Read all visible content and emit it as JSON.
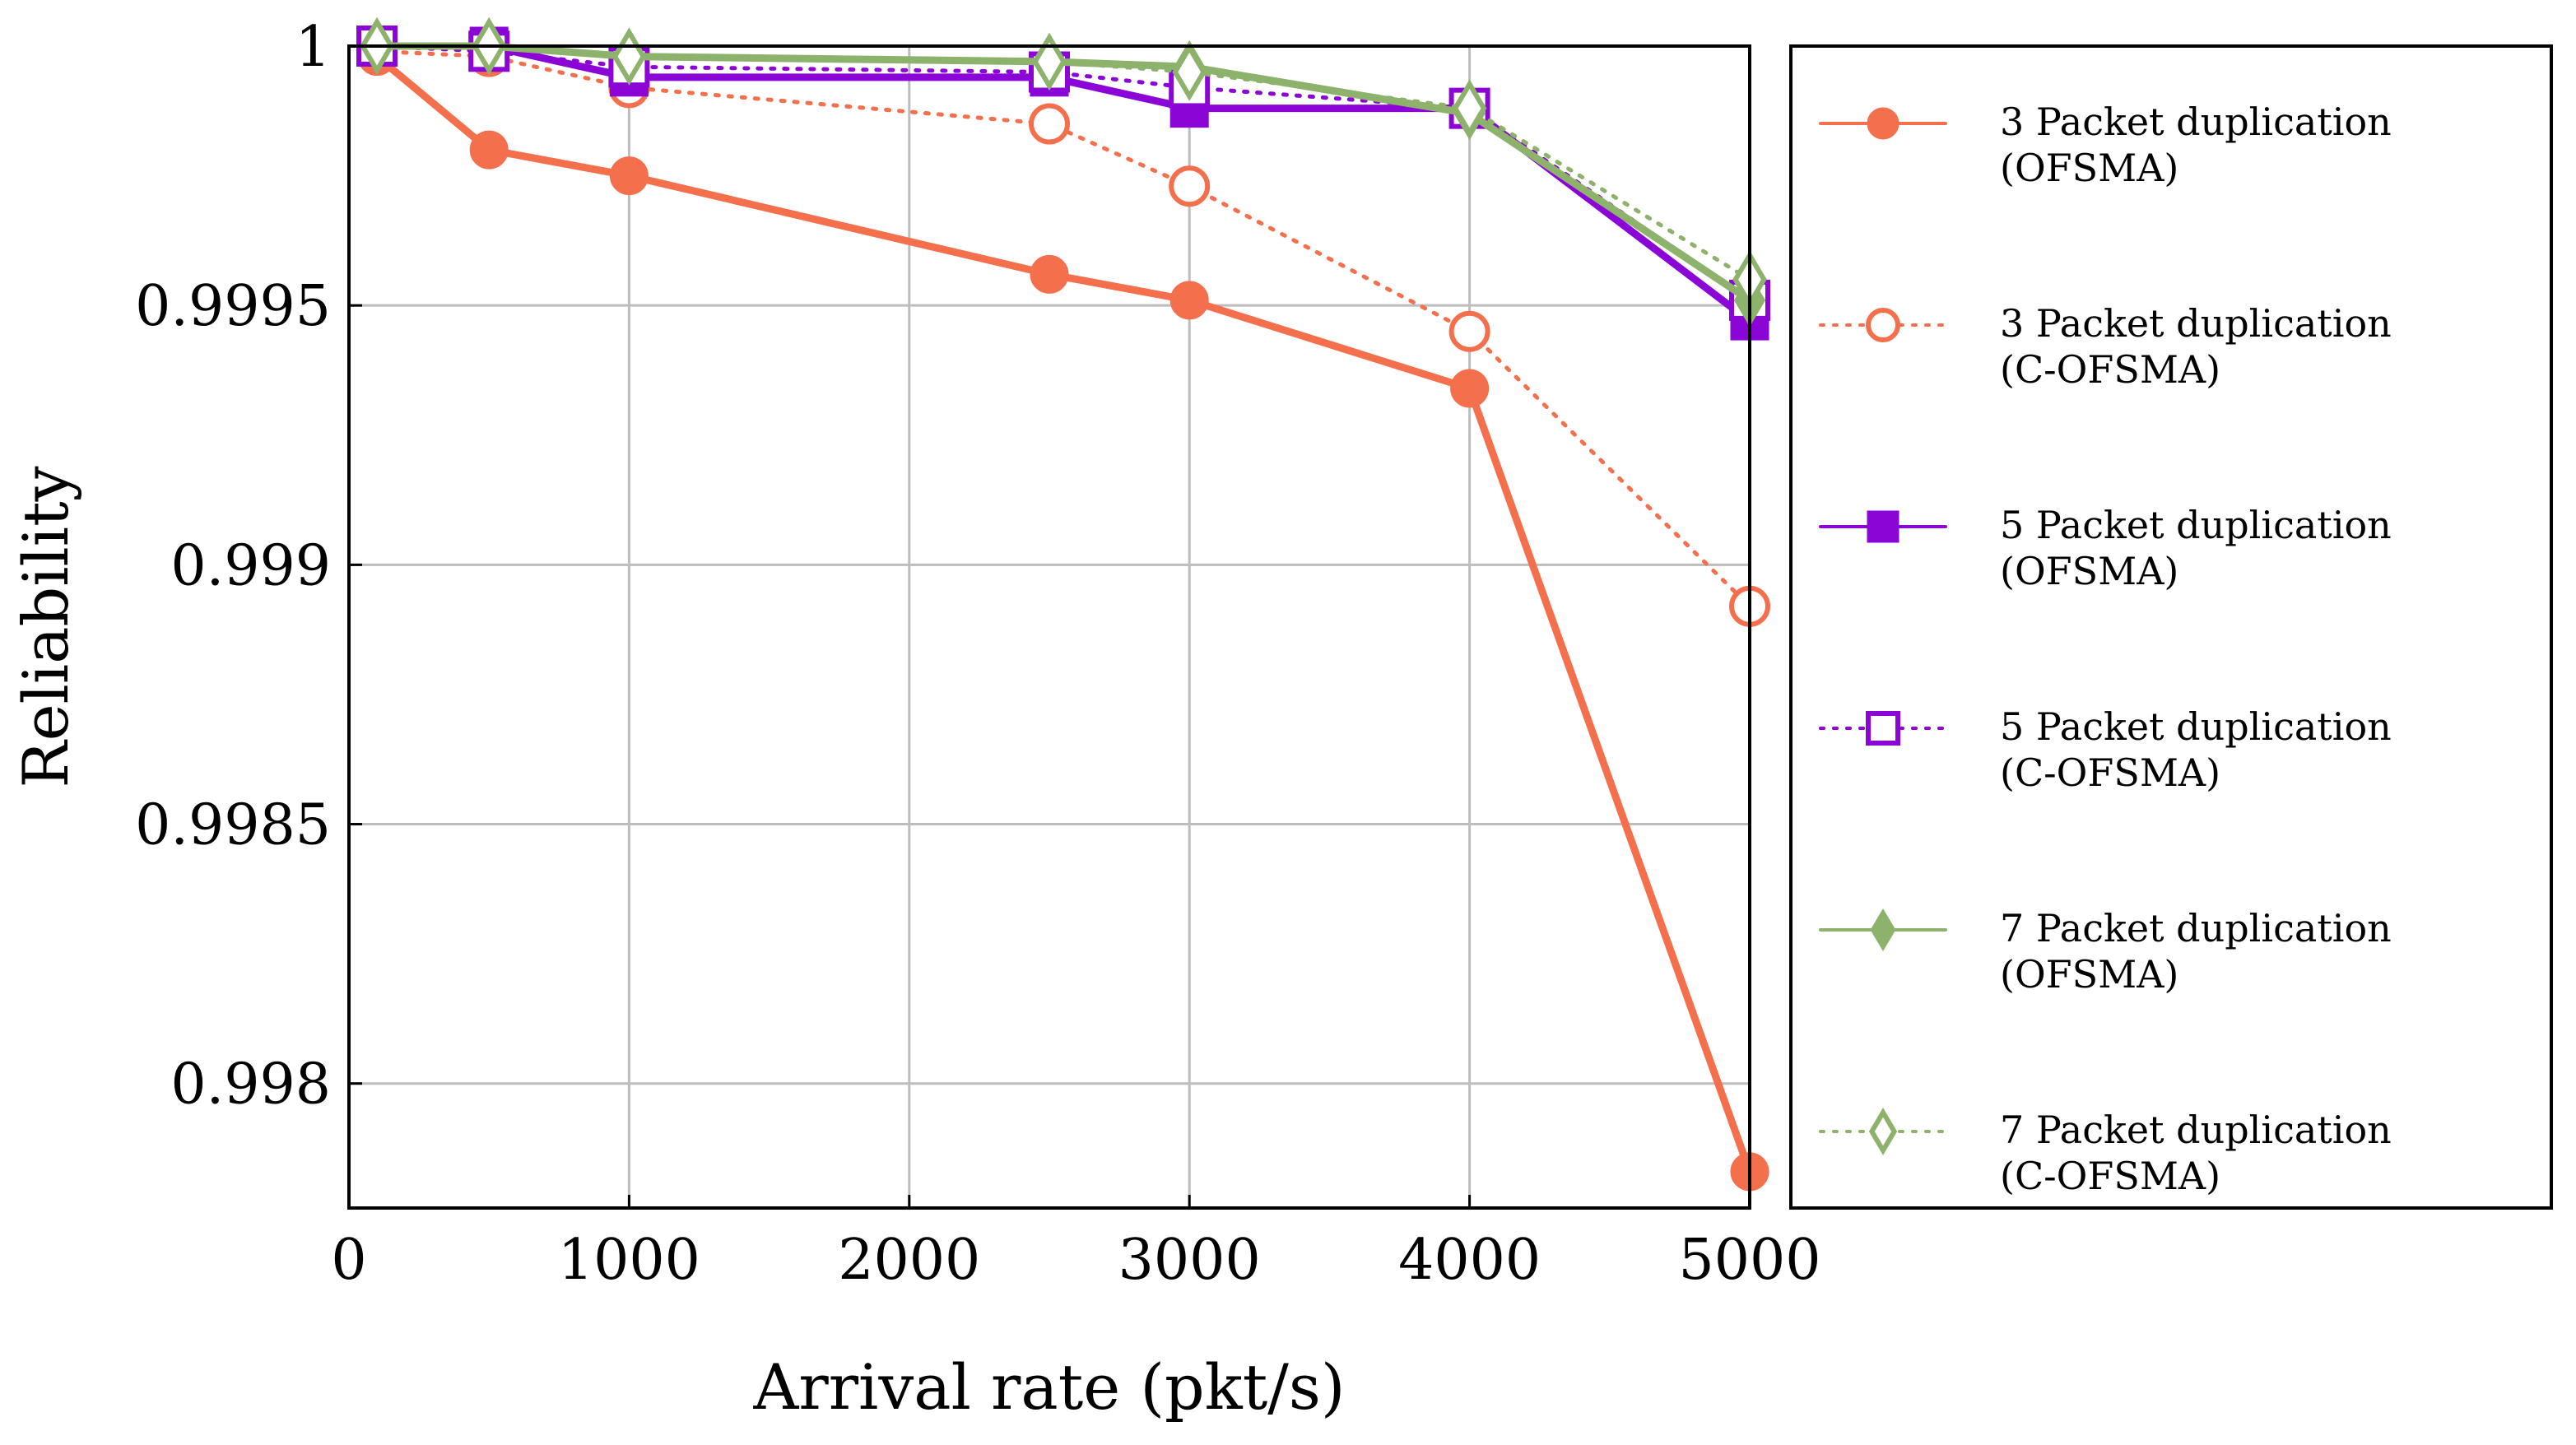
{
  "chart_data": {
    "type": "line",
    "xlabel": "Arrival rate (pkt/s)",
    "ylabel": "Reliability",
    "xlim": [
      0,
      5000
    ],
    "ylim": [
      0.99776,
      1.0
    ],
    "xticks": [
      0,
      1000,
      2000,
      3000,
      4000,
      5000
    ],
    "xtick_labels": [
      "0",
      "1000",
      "2000",
      "3000",
      "4000",
      "5000"
    ],
    "yticks": [
      0.998,
      0.9985,
      0.999,
      0.9995,
      1.0
    ],
    "ytick_labels": [
      "0.998",
      "0.9985",
      "0.999",
      "0.9995",
      "1"
    ],
    "grid": true,
    "legend_position": "right, outside",
    "x": [
      100,
      500,
      1000,
      2500,
      3000,
      4000,
      5000
    ],
    "series": [
      {
        "name_line1": "3 Packet duplication",
        "name_line2": "(OFSMA)",
        "color": "#f4704d",
        "style": "solid",
        "marker": "circle-filled",
        "values": [
          0.99998,
          0.9998,
          0.99975,
          0.99956,
          0.99951,
          0.99934,
          0.99783
        ]
      },
      {
        "name_line1": "3 Packet duplication",
        "name_line2": "(C-OFSMA)",
        "color": "#f4704d",
        "style": "dotted",
        "marker": "circle-open",
        "values": [
          0.99999,
          0.99998,
          0.99992,
          0.99985,
          0.99973,
          0.99945,
          0.99892
        ]
      },
      {
        "name_line1": "5 Packet duplication",
        "name_line2": "(OFSMA)",
        "color": "#8b05d6",
        "style": "solid",
        "marker": "square-filled",
        "values": [
          1.0,
          1.0,
          0.99994,
          0.99994,
          0.99988,
          0.99988,
          0.99947
        ]
      },
      {
        "name_line1": "5 Packet duplication",
        "name_line2": "(C-OFSMA)",
        "color": "#8b05d6",
        "style": "dotted",
        "marker": "square-open",
        "values": [
          1.0,
          0.99999,
          0.99996,
          0.99995,
          0.99992,
          0.99988,
          0.99951
        ]
      },
      {
        "name_line1": "7 Packet duplication",
        "name_line2": "(OFSMA)",
        "color": "#8db26b",
        "style": "solid",
        "marker": "diamond-filled",
        "values": [
          1.0,
          1.0,
          0.99998,
          0.99997,
          0.99996,
          0.99987,
          0.99951
        ]
      },
      {
        "name_line1": "7 Packet duplication",
        "name_line2": "(C-OFSMA)",
        "color": "#8db26b",
        "style": "dotted",
        "marker": "diamond-open",
        "values": [
          1.0,
          1.0,
          0.99998,
          0.99997,
          0.99995,
          0.99988,
          0.99955
        ]
      }
    ]
  }
}
